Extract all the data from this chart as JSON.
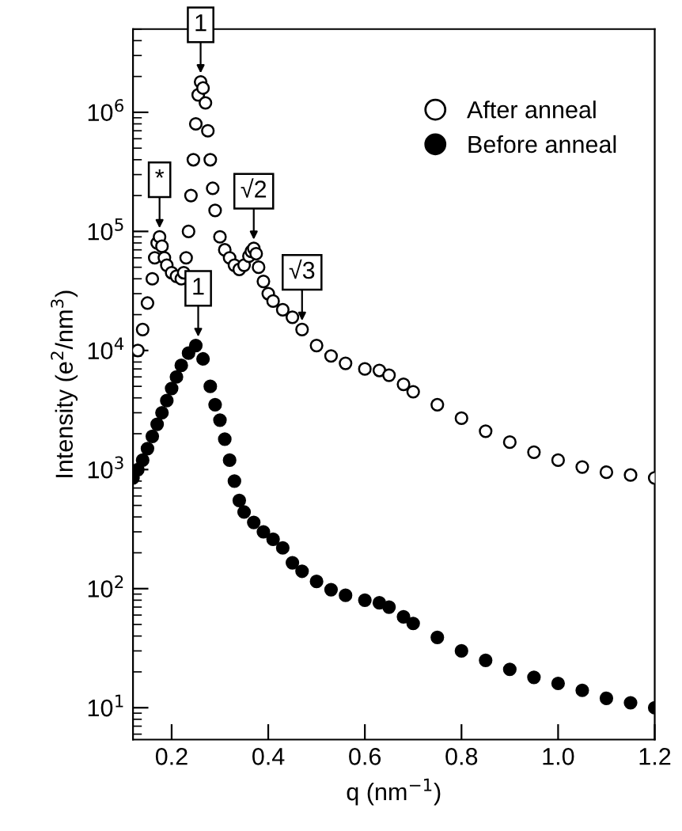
{
  "chart_data": {
    "type": "scatter",
    "xlabel": "q (nm$^{−1}$)",
    "ylabel": "Intensity (e$^{2}$/nm$^{3}$)",
    "log": "y",
    "xlim": [
      0.12,
      1.2
    ],
    "ylim": [
      5.4,
      5000000
    ],
    "xticks": [
      0.2,
      0.4,
      0.6,
      0.8,
      {
        "value": 1.0,
        "label": "1.0"
      },
      1.2
    ],
    "yticks": [
      {
        "value": 10,
        "label": "10$^{1}$"
      },
      {
        "value": 100,
        "label": "10$^{2}$"
      },
      {
        "value": 1000,
        "label": "10$^{3}$"
      },
      {
        "value": 10000,
        "label": "10$^{4}$"
      },
      {
        "value": 100000,
        "label": "10$^{5}$"
      },
      {
        "value": 1000000,
        "label": "10$^{6}$"
      }
    ],
    "grid": false,
    "legend": "top right",
    "marker": "circle",
    "series": [
      {
        "name": "After anneal",
        "color": "#ffffff",
        "x": [
          0.13,
          0.14,
          0.15,
          0.16,
          0.165,
          0.17,
          0.175,
          0.18,
          0.185,
          0.19,
          0.2,
          0.21,
          0.22,
          0.225,
          0.23,
          0.235,
          0.24,
          0.245,
          0.25,
          0.255,
          0.26,
          0.265,
          0.27,
          0.275,
          0.28,
          0.285,
          0.29,
          0.3,
          0.31,
          0.32,
          0.33,
          0.34,
          0.35,
          0.36,
          0.365,
          0.37,
          0.375,
          0.38,
          0.39,
          0.4,
          0.41,
          0.43,
          0.45,
          0.47,
          0.5,
          0.53,
          0.56,
          0.6,
          0.63,
          0.65,
          0.68,
          0.7,
          0.75,
          0.8,
          0.85,
          0.9,
          0.95,
          1.0,
          1.05,
          1.1,
          1.15,
          1.2
        ],
        "values": [
          10000,
          15000,
          25000,
          40000,
          60000,
          80000,
          90000,
          75000,
          60000,
          52000,
          45000,
          42000,
          40000,
          45000,
          60000,
          100000,
          200000,
          400000,
          800000,
          1400000,
          1800000,
          1600000,
          1200000,
          700000,
          400000,
          230000,
          150000,
          90000,
          70000,
          60000,
          52000,
          48000,
          52000,
          62000,
          68000,
          72000,
          65000,
          50000,
          38000,
          30000,
          26000,
          22000,
          19000,
          15000,
          11000,
          9000,
          7800,
          7000,
          6800,
          6200,
          5200,
          4500,
          3500,
          2700,
          2100,
          1700,
          1400,
          1200,
          1050,
          950,
          900,
          850
        ]
      },
      {
        "name": "Before anneal",
        "color": "#000000",
        "x": [
          0.12,
          0.13,
          0.14,
          0.15,
          0.16,
          0.17,
          0.18,
          0.19,
          0.2,
          0.21,
          0.22,
          0.235,
          0.25,
          0.265,
          0.28,
          0.29,
          0.3,
          0.31,
          0.32,
          0.33,
          0.34,
          0.35,
          0.37,
          0.39,
          0.41,
          0.43,
          0.45,
          0.47,
          0.5,
          0.53,
          0.56,
          0.6,
          0.63,
          0.65,
          0.68,
          0.7,
          0.75,
          0.8,
          0.85,
          0.9,
          0.95,
          1.0,
          1.05,
          1.1,
          1.15,
          1.2
        ],
        "values": [
          850,
          1000,
          1200,
          1500,
          1900,
          2400,
          3000,
          3800,
          4800,
          6000,
          7500,
          9500,
          11000,
          8500,
          5000,
          3500,
          2600,
          1800,
          1200,
          800,
          550,
          440,
          360,
          300,
          260,
          220,
          165,
          140,
          115,
          98,
          88,
          80,
          76,
          70,
          58,
          51,
          39,
          30,
          25,
          21,
          18,
          16,
          14,
          12,
          11,
          10
        ]
      }
    ],
    "annotations": [
      {
        "text": "1",
        "x": 0.26,
        "y": 1800000
      },
      {
        "text": "*",
        "x": 0.175,
        "y": 90000
      },
      {
        "text": "√2",
        "x": 0.37,
        "y": 72000
      },
      {
        "text": "√3",
        "x": 0.47,
        "y": 15000
      },
      {
        "text": "1",
        "x": 0.255,
        "y": 11000
      }
    ]
  }
}
